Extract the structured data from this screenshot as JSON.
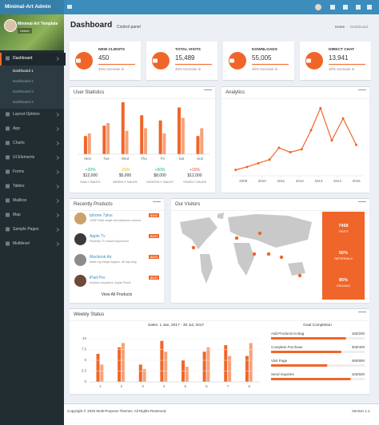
{
  "header": {
    "logo": "Minimal-Art Admin",
    "title": "Dashboard",
    "subtitle": "Control panel",
    "breadcrumb": [
      "Home",
      "Dashboard"
    ]
  },
  "sidebar": {
    "user": "Minimal-Art Template",
    "status": "Online",
    "menu": [
      "Dashboard",
      "Layout Options",
      "App",
      "Charts",
      "UI Elements",
      "Forms",
      "Tables",
      "Mailbox",
      "Map",
      "Sample Pages",
      "Multilevel"
    ],
    "submenu": [
      "Dashboard 1",
      "Dashboard 2",
      "Dashboard 3",
      "Dashboard 4"
    ]
  },
  "info_boxes": [
    {
      "label": "NEW CLIENTS",
      "value": "450",
      "note": "45% Increase in"
    },
    {
      "label": "TOTAL VISITS",
      "value": "15,489",
      "note": "45% Increase in"
    },
    {
      "label": "DOWNLOADS",
      "value": "55,005",
      "note": "45% Increase in"
    },
    {
      "label": "DIRECT CHAT",
      "value": "13,941",
      "note": "45% Increase in"
    }
  ],
  "user_statistics": {
    "title": "User Statistics",
    "type": "bar",
    "categories": [
      "Mon",
      "Tue",
      "Wed",
      "Thu",
      "Fri",
      "Sat",
      "Sun"
    ],
    "series": [
      {
        "color": "#f06529",
        "values": [
          35,
          55,
          100,
          75,
          65,
          90,
          35
        ]
      },
      {
        "color": "#f5a27a",
        "values": [
          40,
          60,
          45,
          50,
          40,
          70,
          50
        ]
      }
    ],
    "ylim": [
      0,
      100
    ],
    "stats": [
      {
        "change": "+20%",
        "amount": "$12,000",
        "label": "DAILY SALES",
        "color": "#26b36b"
      },
      {
        "change": "-15%",
        "amount": "$5,000",
        "label": "WEEKLY SALES",
        "color": "#e6b422"
      },
      {
        "change": "+60%",
        "amount": "$8,000",
        "label": "MONTHLY SALES",
        "color": "#26b36b"
      },
      {
        "change": "+15%",
        "amount": "$12,000",
        "label": "YEARLY SALES",
        "color": "#e8453c"
      }
    ]
  },
  "analytics": {
    "title": "Analytics",
    "type": "line",
    "x": [
      2008.6,
      2009.2,
      2009.8,
      2010.4,
      2010.9,
      2011.5,
      2012.1,
      2012.6,
      2013.1,
      2013.7,
      2014.3,
      2015.0
    ],
    "values": [
      8,
      12,
      17,
      22,
      38,
      32,
      36,
      62,
      92,
      48,
      78,
      42
    ],
    "color": "#f06529",
    "xlim": [
      2008.4,
      2015.4
    ],
    "xticks": [
      2009,
      2010,
      2011,
      2012,
      2013,
      2014,
      2015
    ],
    "ylim": [
      0,
      100
    ]
  },
  "products": {
    "title": "Recently Products",
    "link": "View All Products",
    "items": [
      {
        "name": "Iphone 7plus",
        "description": "12MP Wide-angle and telephoto camera",
        "price": "$300"
      },
      {
        "name": "Apple Tv",
        "description": "Recently Tv shows Experience",
        "price": "$400"
      },
      {
        "name": "Macbook Air",
        "description": "Make big things happen. All day long.",
        "price": "$500"
      },
      {
        "name": "iPad Pro",
        "description": "Anytime anywhere, Apple Pencil",
        "price": "$400"
      }
    ]
  },
  "visitors": {
    "title": "Our Visitors",
    "stats": [
      {
        "value": "7458",
        "label": "VISITS"
      },
      {
        "value": "56%",
        "label": "REFERRALS"
      },
      {
        "value": "85%",
        "label": "ORGANIC"
      }
    ]
  },
  "weekly_status": {
    "title": "Weekly Status",
    "subtitle": "Sales: 1 Jan, 2017 - 30 Jul, 2017",
    "type": "bar",
    "categories": [
      "1",
      "2",
      "3",
      "4",
      "5",
      "6",
      "7",
      "8"
    ],
    "series": [
      {
        "color": "#f06529",
        "values": [
          6.5,
          8,
          4,
          9.5,
          5,
          7,
          8.5,
          6
        ]
      },
      {
        "color": "#f5a27a",
        "values": [
          4,
          9,
          3,
          7,
          3.5,
          8,
          6,
          9
        ]
      }
    ],
    "ylim": [
      0,
      10
    ],
    "yticks": [
      0,
      2.5,
      5,
      7.5,
      10
    ],
    "goal_title": "Goal Completion",
    "goals": [
      {
        "name": "Add Products to Bag",
        "value": 160,
        "max": 200,
        "value_label": "160/200"
      },
      {
        "name": "Complete Purchase",
        "value": 300,
        "max": 400,
        "value_label": "300/400"
      },
      {
        "name": "Visit Page",
        "value": 480,
        "max": 800,
        "value_label": "480/800"
      },
      {
        "name": "Send Inquiries",
        "value": 425,
        "max": 500,
        "value_label": "425/500"
      }
    ]
  },
  "footer": {
    "copyright": "Copyright © 2020 Multi-Purpose Themes. All Rights Reserved.",
    "version": "Version 1.1"
  }
}
